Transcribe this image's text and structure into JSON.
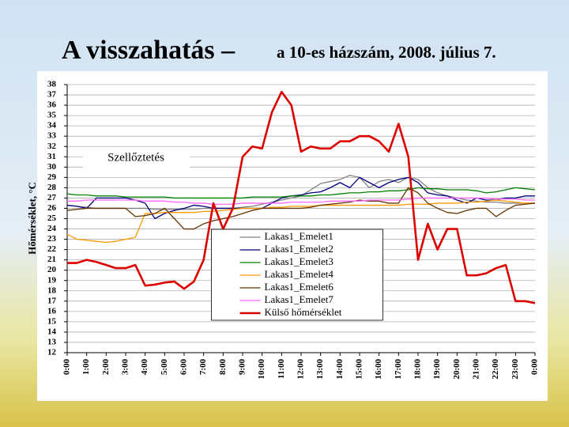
{
  "chart_data": {
    "type": "line",
    "title": "A visszahatás –",
    "subtitle": "a 10-es házszám, 2008. július 7.",
    "ylabel": "Hőmérséklet, °C",
    "annotation": "Szellőztetés",
    "x": [
      0,
      0.5,
      1,
      1.5,
      2,
      2.5,
      3,
      3.5,
      4,
      4.5,
      5,
      5.5,
      6,
      6.5,
      7,
      7.5,
      8,
      8.5,
      9,
      9.5,
      10,
      10.5,
      11,
      11.5,
      12,
      12.5,
      13,
      13.5,
      14,
      14.5,
      15,
      15.5,
      16,
      16.5,
      17,
      17.5,
      18,
      18.5,
      19,
      19.5,
      20,
      20.5,
      21,
      21.5,
      22,
      22.5,
      23,
      23.5,
      24
    ],
    "xlim": [
      0,
      24
    ],
    "xticks": [
      {
        "value": 0,
        "label": "0:00"
      },
      {
        "value": 1,
        "label": "1:00"
      },
      {
        "value": 2,
        "label": "2:00"
      },
      {
        "value": 3,
        "label": "3:00"
      },
      {
        "value": 4,
        "label": "4:00"
      },
      {
        "value": 5,
        "label": "5:00"
      },
      {
        "value": 6,
        "label": "6:00"
      },
      {
        "value": 7,
        "label": "7:00"
      },
      {
        "value": 8,
        "label": "8:00"
      },
      {
        "value": 9,
        "label": "9:00"
      },
      {
        "value": 10,
        "label": "10:00"
      },
      {
        "value": 11,
        "label": "11:00"
      },
      {
        "value": 12,
        "label": "12:00"
      },
      {
        "value": 13,
        "label": "13:00"
      },
      {
        "value": 14,
        "label": "14:00"
      },
      {
        "value": 15,
        "label": "15:00"
      },
      {
        "value": 16,
        "label": "16:00"
      },
      {
        "value": 17,
        "label": "17:00"
      },
      {
        "value": 18,
        "label": "18:00"
      },
      {
        "value": 19,
        "label": "19:00"
      },
      {
        "value": 20,
        "label": "20:00"
      },
      {
        "value": 21,
        "label": "21:00"
      },
      {
        "value": 22,
        "label": "22:00"
      },
      {
        "value": 23,
        "label": "23:00"
      },
      {
        "value": 24,
        "label": "0:00"
      }
    ],
    "ylim": [
      12,
      38
    ],
    "yticks": [
      12,
      13,
      14,
      15,
      16,
      17,
      18,
      19,
      20,
      21,
      22,
      23,
      24,
      25,
      26,
      27,
      28,
      29,
      30,
      31,
      32,
      33,
      34,
      35,
      36,
      37,
      38
    ],
    "grid": true,
    "legend_position": "lower center",
    "series": [
      {
        "name": "Lakas1_Emelet1",
        "color": "#808080",
        "values": [
          26.3,
          26.2,
          26.1,
          26,
          26,
          26,
          26,
          26,
          26,
          25.9,
          25.9,
          25.9,
          25.9,
          25.9,
          26,
          26,
          26,
          26,
          26.1,
          26.2,
          26.4,
          26.6,
          26.8,
          27,
          27.2,
          27.8,
          28.4,
          28.6,
          28.8,
          29.2,
          29,
          28,
          28.6,
          28.8,
          28.5,
          29,
          28.8,
          28,
          27.5,
          27.2,
          27,
          26.8,
          26.7,
          26.6,
          26.6,
          26.5,
          26.5,
          26.5,
          26.5
        ]
      },
      {
        "name": "Lakas1_Emelet2",
        "color": "#000080",
        "values": [
          26.3,
          26.2,
          26,
          27,
          27,
          27,
          27,
          26.8,
          26.5,
          25,
          25.5,
          25.8,
          26,
          26.3,
          26.2,
          26,
          26,
          26,
          26,
          26,
          26,
          26.5,
          27,
          27.2,
          27.3,
          27.5,
          27.6,
          28,
          28.5,
          28,
          29,
          28.5,
          28,
          28.5,
          28.8,
          29,
          28.5,
          27.5,
          27.3,
          27.2,
          26.8,
          26.5,
          27,
          26.8,
          26.8,
          27,
          27,
          27.2,
          27.2
        ]
      },
      {
        "name": "Lakas1_Emelet3",
        "color": "#008000",
        "values": [
          27.4,
          27.3,
          27.3,
          27.2,
          27.2,
          27.2,
          27.1,
          27.1,
          27.1,
          27.1,
          27.1,
          27,
          27,
          27,
          27,
          27,
          27,
          27,
          27,
          27.1,
          27.1,
          27.1,
          27.1,
          27.2,
          27.2,
          27.2,
          27.3,
          27.3,
          27.4,
          27.5,
          27.5,
          27.6,
          27.6,
          27.7,
          27.7,
          27.8,
          28,
          27.9,
          27.9,
          27.8,
          27.8,
          27.8,
          27.7,
          27.5,
          27.6,
          27.8,
          28,
          27.9,
          27.8
        ]
      },
      {
        "name": "Lakas1_Emelet4",
        "color": "#ff9900",
        "values": [
          23.5,
          23,
          22.9,
          22.8,
          22.7,
          22.8,
          23,
          23.2,
          25.5,
          25.5,
          25.6,
          25.6,
          25.6,
          25.6,
          25.7,
          25.7,
          25.8,
          25.9,
          26,
          26,
          26,
          26.1,
          26.1,
          26.2,
          26.2,
          26.2,
          26.3,
          26.3,
          26.3,
          26.3,
          26.3,
          26.3,
          26.3,
          26.3,
          26.3,
          26.4,
          26.4,
          26.4,
          26.5,
          26.5,
          26.5,
          26.6,
          26.6,
          26.7,
          26.8,
          26.7,
          26.6,
          26.5,
          26.5
        ]
      },
      {
        "name": "Lakas1_Emelet6",
        "color": "#663300",
        "values": [
          25.8,
          25.9,
          26,
          26,
          26,
          26,
          26,
          25.2,
          25.3,
          25.5,
          26,
          25,
          24,
          24,
          24.5,
          24.8,
          25,
          25.2,
          25.5,
          25.8,
          26,
          26,
          26,
          26,
          26,
          26.1,
          26.3,
          26.4,
          26.5,
          26.6,
          26.8,
          26.7,
          26.7,
          26.5,
          26.5,
          28,
          27.5,
          26.5,
          26,
          25.6,
          25.5,
          25.8,
          26,
          26,
          25.2,
          25.8,
          26.3,
          26.4,
          26.5
        ]
      },
      {
        "name": "Lakas1_Emelet7",
        "color": "#ff66ff",
        "values": [
          26.7,
          26.7,
          26.8,
          26.8,
          26.8,
          26.8,
          26.8,
          26.8,
          26.7,
          26.7,
          26.7,
          26.6,
          26.6,
          26.5,
          26.5,
          26.4,
          26.4,
          26.4,
          26.5,
          26.5,
          26.5,
          26.5,
          26.5,
          26.6,
          26.6,
          26.6,
          26.6,
          26.7,
          26.7,
          26.7,
          26.7,
          26.8,
          26.8,
          26.8,
          26.8,
          26.9,
          27,
          27,
          27,
          27,
          27,
          27,
          27,
          27,
          26.9,
          26.9,
          26.9,
          26.8,
          26.8
        ]
      },
      {
        "name": "Külső hőmérséklet",
        "color": "#dd0000",
        "values": [
          20.7,
          20.7,
          21,
          20.8,
          20.5,
          20.2,
          20.2,
          20.5,
          18.5,
          18.6,
          18.8,
          18.9,
          18.2,
          18.9,
          21,
          26.5,
          24,
          26,
          31,
          32,
          31.8,
          35.3,
          37.3,
          36,
          31.5,
          32,
          31.8,
          31.8,
          32.5,
          32.5,
          33,
          33,
          32.5,
          31.5,
          34.2,
          31,
          21,
          24.5,
          22,
          24,
          24,
          19.5,
          19.5,
          19.7,
          20.2,
          20.5,
          17,
          17,
          16.8
        ]
      }
    ]
  }
}
